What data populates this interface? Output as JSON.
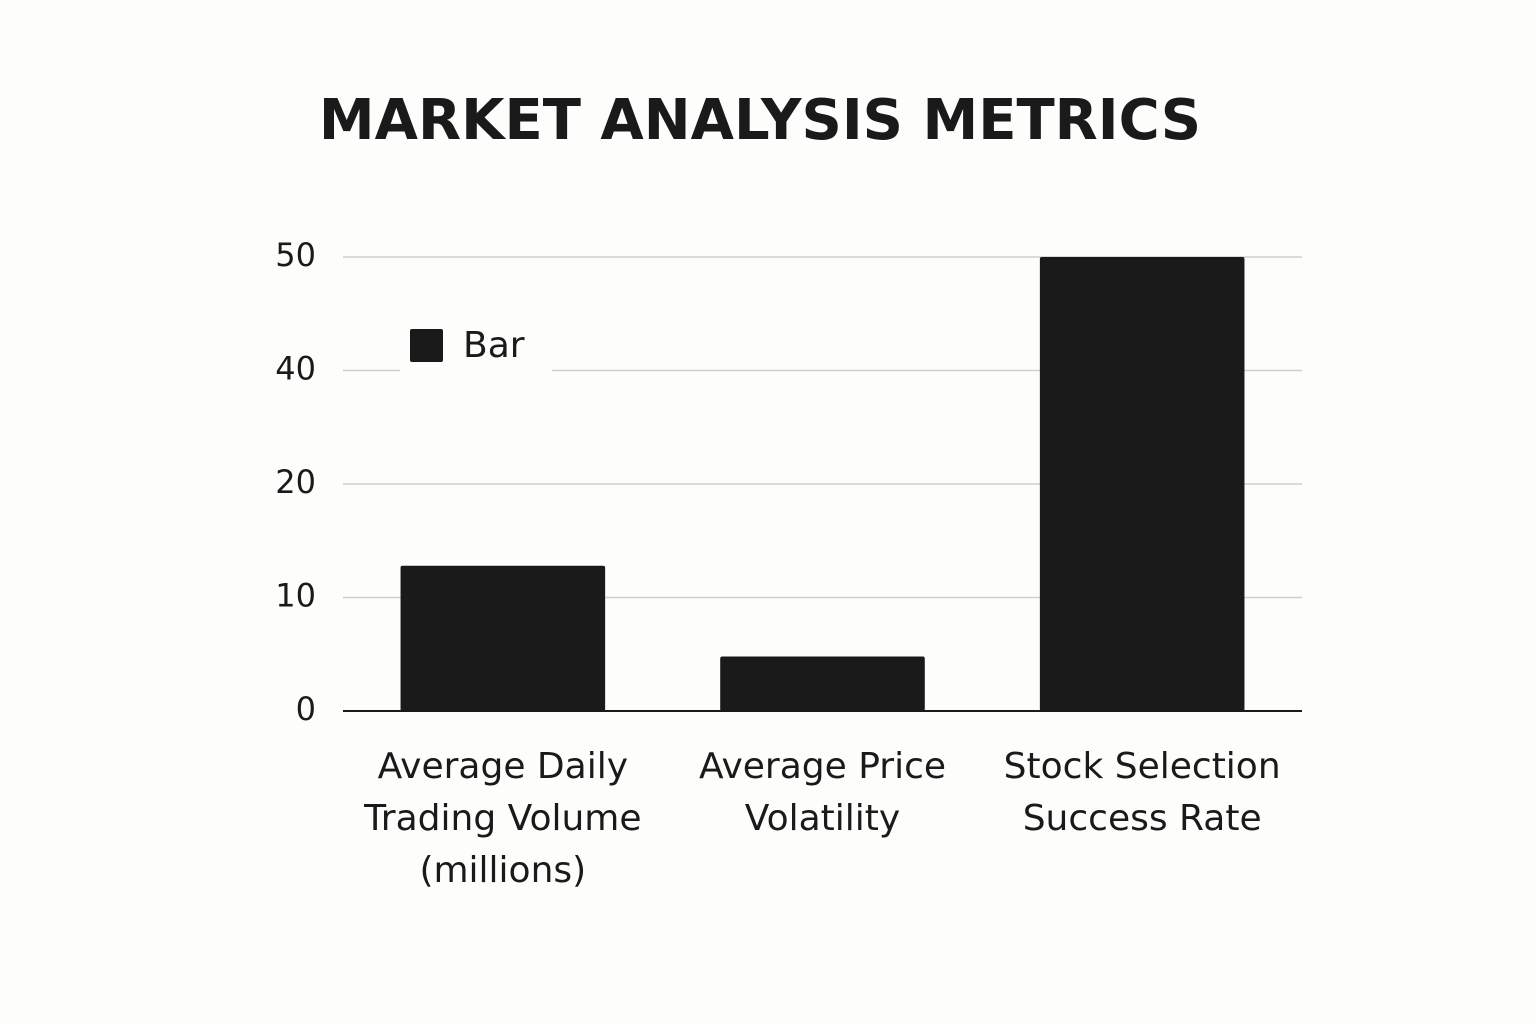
{
  "chart_data": {
    "type": "bar",
    "title": "MARKET ANALYSIS METRICS",
    "categories": [
      "Average Daily Trading Volume (millions)",
      "Average Price Volatility",
      "Stock Selection Success Rate"
    ],
    "series": [
      {
        "name": "Bar",
        "color": "#1a1a1a",
        "values": [
          12.8,
          4.8,
          50
        ]
      }
    ],
    "ylim": [
      0,
      50
    ],
    "yticks": [
      0,
      10,
      20,
      40,
      50
    ],
    "grid": true,
    "legend": "upper left"
  }
}
